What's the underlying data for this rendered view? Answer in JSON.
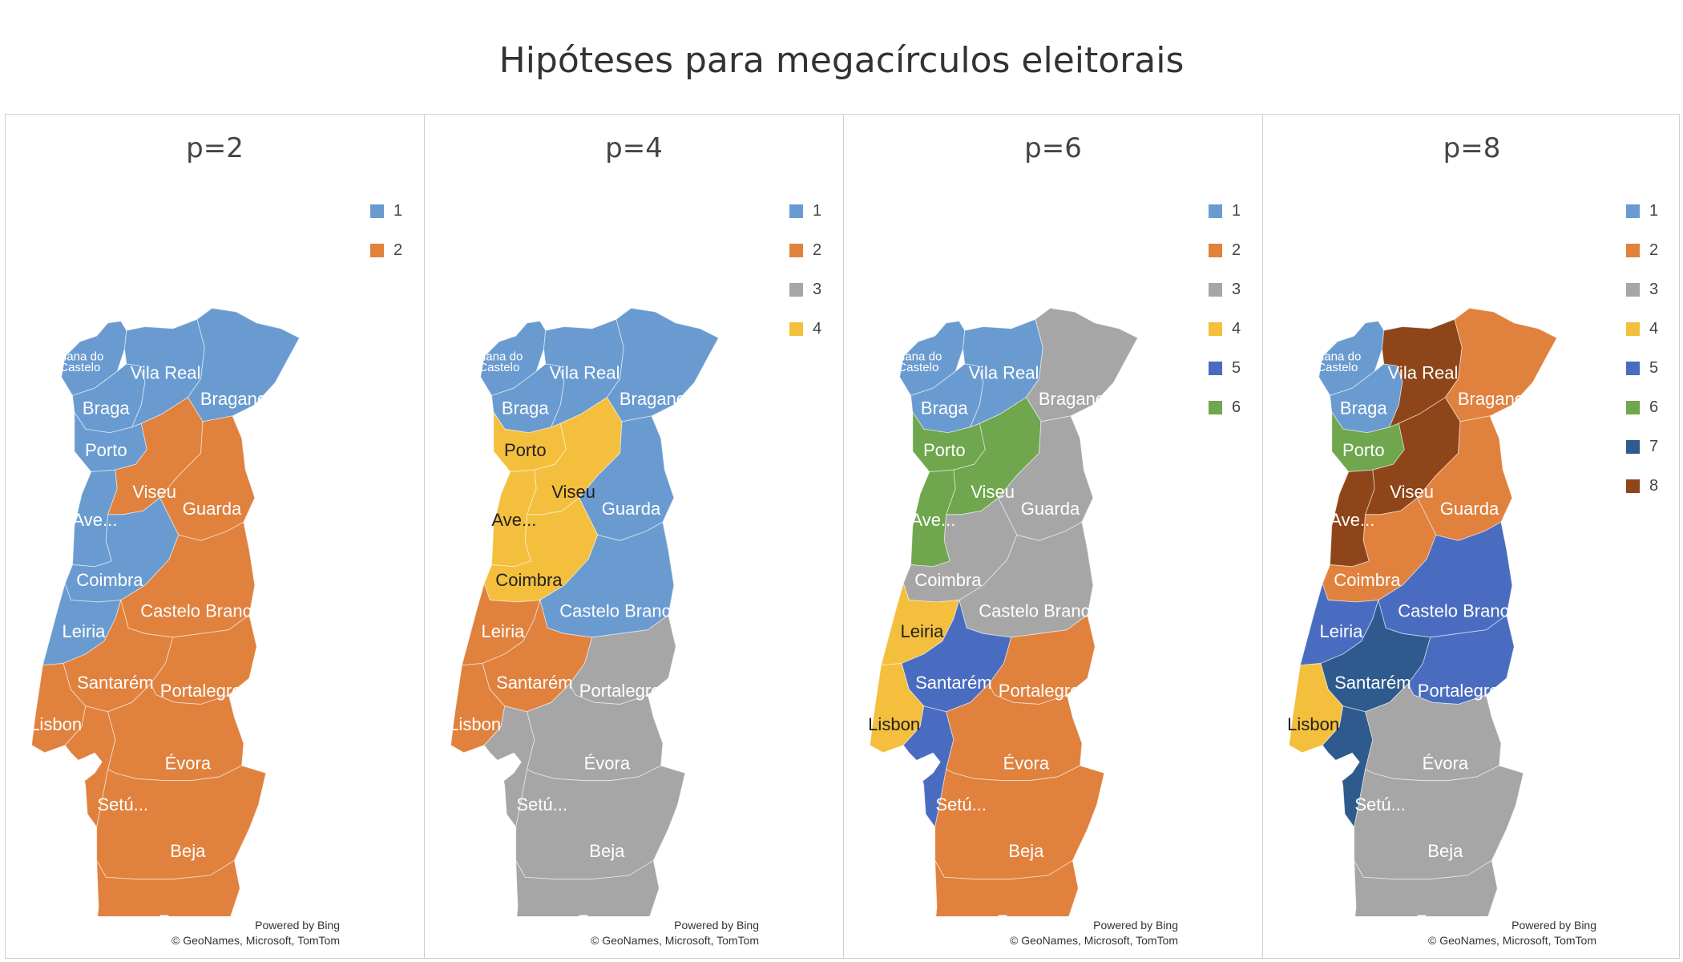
{
  "title": "Hipóteses para megacírculos eleitorais",
  "colors": {
    "1": "#6a9bd0",
    "2": "#e0813e",
    "3": "#a6a6a6",
    "4": "#f4bf3c",
    "5": "#4a6cc0",
    "6": "#6fa64e",
    "7": "#2f5a8e",
    "8": "#8e4519"
  },
  "credits": {
    "line1": "Powered by Bing",
    "line2": "© GeoNames, Microsoft, TomTom"
  },
  "panels": [
    {
      "title": "p=2",
      "legend": [
        "1",
        "2"
      ],
      "regions": {
        "viana": "1",
        "braga": "1",
        "vilareal": "1",
        "braganca": "1",
        "porto": "1",
        "aveiro": "1",
        "viseu": "2",
        "guarda": "2",
        "coimbra": "1",
        "leiria": "1",
        "castelobranco": "2",
        "santarem": "2",
        "portalegre": "2",
        "lisbon": "2",
        "setubal": "2",
        "evora": "2",
        "beja": "2",
        "faro": "2"
      }
    },
    {
      "title": "p=4",
      "legend": [
        "1",
        "2",
        "3",
        "4"
      ],
      "regions": {
        "viana": "1",
        "braga": "1",
        "vilareal": "1",
        "braganca": "1",
        "porto": "4",
        "aveiro": "4",
        "viseu": "4",
        "guarda": "1",
        "coimbra": "4",
        "leiria": "2",
        "castelobranco": "1",
        "santarem": "2",
        "portalegre": "3",
        "lisbon": "2",
        "setubal": "3",
        "evora": "3",
        "beja": "3",
        "faro": "3"
      }
    },
    {
      "title": "p=6",
      "legend": [
        "1",
        "2",
        "3",
        "4",
        "5",
        "6"
      ],
      "regions": {
        "viana": "1",
        "braga": "1",
        "vilareal": "1",
        "braganca": "3",
        "porto": "6",
        "aveiro": "6",
        "viseu": "6",
        "guarda": "3",
        "coimbra": "3",
        "leiria": "4",
        "castelobranco": "3",
        "santarem": "5",
        "portalegre": "2",
        "lisbon": "4",
        "setubal": "5",
        "evora": "2",
        "beja": "2",
        "faro": "2"
      }
    },
    {
      "title": "p=8",
      "legend": [
        "1",
        "2",
        "3",
        "4",
        "5",
        "6",
        "7",
        "8"
      ],
      "regions": {
        "viana": "1",
        "braga": "1",
        "vilareal": "8",
        "braganca": "2",
        "porto": "6",
        "aveiro": "8",
        "viseu": "8",
        "guarda": "2",
        "coimbra": "2",
        "leiria": "5",
        "castelobranco": "5",
        "santarem": "7",
        "portalegre": "5",
        "lisbon": "4",
        "setubal": "7",
        "evora": "3",
        "beja": "3",
        "faro": "3"
      }
    }
  ],
  "labels": {
    "viana": "Viana do Castelo",
    "braga": "Braga",
    "vilareal": "Vila Real",
    "braganca": "Bragança",
    "porto": "Porto",
    "aveiro": "Ave...",
    "viseu": "Viseu",
    "guarda": "Guarda",
    "coimbra": "Coimbra",
    "leiria": "Leiria",
    "castelobranco": "Castelo Branco",
    "santarem": "Santarém",
    "portalegre": "Portalegre",
    "lisbon": "Lisbon",
    "setubal": "Setú...",
    "evora": "Évora",
    "beja": "Beja",
    "faro": "Faro"
  }
}
